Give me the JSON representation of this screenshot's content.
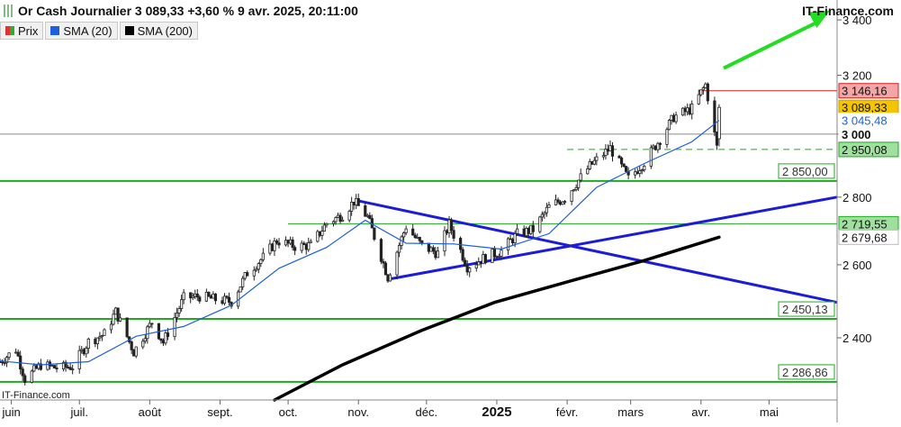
{
  "header": {
    "title": "Or Cash Journalier 3 089,33 +3,60 % 9 avr. 2025, 20:11:00",
    "brand": "IT-Finance.com"
  },
  "legend": {
    "price_label": "Prix",
    "sma20_label": "SMA (20)",
    "sma200_label": "SMA (200)"
  },
  "watermark": "IT-Finance.com",
  "colors": {
    "sma20": "#1e5fe0",
    "sma200": "#000000",
    "support_line": "#1faa1f",
    "resistance_line": "#d42020",
    "trendline": "#1c1cd8",
    "arrow": "#22dd22",
    "last_price_tag": "#f5c400",
    "resistance_tag": "#f4a6a6",
    "support_tag": "#9fe09f"
  },
  "chart_data": {
    "type": "line",
    "title": "Or Cash Journalier 3 089,33 +3,60 % 9 avr. 2025, 20:11:00",
    "xlabel": "",
    "ylabel": "",
    "ylim": [
      2242,
      3475
    ],
    "y_scale": "log",
    "y_ticks": [
      "3 400",
      "3 200",
      "3 000",
      "2 800",
      "2 600",
      "2 400"
    ],
    "y_tick_values": [
      3400,
      3200,
      3000,
      2800,
      2600,
      2400
    ],
    "x_ticks": [
      "juin",
      "juil.",
      "août",
      "sept.",
      "oct.",
      "nov.",
      "déc.",
      "2025",
      "févr.",
      "mars",
      "avr.",
      "mai"
    ],
    "x_tick_dates": [
      "2024-06-01",
      "2024-07-01",
      "2024-08-01",
      "2024-09-01",
      "2024-10-01",
      "2024-11-01",
      "2024-12-01",
      "2025-01-01",
      "2025-02-01",
      "2025-03-01",
      "2025-04-01",
      "2025-05-01"
    ],
    "xlim": [
      "2024-05-27",
      "2025-05-31"
    ],
    "grid": false,
    "legend_position": "top-left",
    "last_price": 3089.33,
    "change_pct": 3.6,
    "series": [
      {
        "name": "Prix",
        "style": "candlestick",
        "points": [
          [
            "2024-05-27",
            2338
          ],
          [
            "2024-06-03",
            2370
          ],
          [
            "2024-06-07",
            2294
          ],
          [
            "2024-06-14",
            2330
          ],
          [
            "2024-06-21",
            2322
          ],
          [
            "2024-06-28",
            2326
          ],
          [
            "2024-07-05",
            2390
          ],
          [
            "2024-07-12",
            2410
          ],
          [
            "2024-07-17",
            2470
          ],
          [
            "2024-07-25",
            2363
          ],
          [
            "2024-08-02",
            2442
          ],
          [
            "2024-08-07",
            2388
          ],
          [
            "2024-08-16",
            2507
          ],
          [
            "2024-08-23",
            2512
          ],
          [
            "2024-08-30",
            2503
          ],
          [
            "2024-09-06",
            2497
          ],
          [
            "2024-09-13",
            2577
          ],
          [
            "2024-09-20",
            2621
          ],
          [
            "2024-09-26",
            2670
          ],
          [
            "2024-10-04",
            2653
          ],
          [
            "2024-10-11",
            2656
          ],
          [
            "2024-10-18",
            2721
          ],
          [
            "2024-10-25",
            2747
          ],
          [
            "2024-10-30",
            2787
          ],
          [
            "2024-11-05",
            2740
          ],
          [
            "2024-11-14",
            2565
          ],
          [
            "2024-11-22",
            2712
          ],
          [
            "2024-11-29",
            2654
          ],
          [
            "2024-12-06",
            2633
          ],
          [
            "2024-12-11",
            2718
          ],
          [
            "2024-12-19",
            2595
          ],
          [
            "2024-12-27",
            2621
          ],
          [
            "2025-01-03",
            2640
          ],
          [
            "2025-01-10",
            2689
          ],
          [
            "2025-01-17",
            2702
          ],
          [
            "2025-01-24",
            2770
          ],
          [
            "2025-01-31",
            2798
          ],
          [
            "2025-02-07",
            2861
          ],
          [
            "2025-02-11",
            2897
          ],
          [
            "2025-02-20",
            2955
          ],
          [
            "2025-02-28",
            2857
          ],
          [
            "2025-03-07",
            2910
          ],
          [
            "2025-03-14",
            2984
          ],
          [
            "2025-03-20",
            3057
          ],
          [
            "2025-03-28",
            3085
          ],
          [
            "2025-04-03",
            3167
          ],
          [
            "2025-04-08",
            2957
          ],
          [
            "2025-04-09",
            3089.33
          ]
        ]
      },
      {
        "name": "SMA (20)",
        "points": [
          [
            "2024-05-27",
            2340
          ],
          [
            "2024-06-14",
            2330
          ],
          [
            "2024-07-05",
            2338
          ],
          [
            "2024-07-26",
            2404
          ],
          [
            "2024-08-16",
            2430
          ],
          [
            "2024-09-06",
            2487
          ],
          [
            "2024-09-27",
            2590
          ],
          [
            "2024-10-18",
            2650
          ],
          [
            "2024-11-04",
            2730
          ],
          [
            "2024-11-22",
            2662
          ],
          [
            "2024-12-13",
            2660
          ],
          [
            "2025-01-03",
            2645
          ],
          [
            "2025-01-24",
            2690
          ],
          [
            "2025-02-14",
            2830
          ],
          [
            "2025-03-07",
            2905
          ],
          [
            "2025-03-28",
            2975
          ],
          [
            "2025-04-09",
            3045.48
          ]
        ]
      },
      {
        "name": "SMA (200)",
        "points": [
          [
            "2024-09-25",
            2242
          ],
          [
            "2024-10-25",
            2330
          ],
          [
            "2024-11-29",
            2420
          ],
          [
            "2024-12-31",
            2495
          ],
          [
            "2025-02-03",
            2555
          ],
          [
            "2025-03-07",
            2612
          ],
          [
            "2025-04-09",
            2679.68
          ]
        ]
      }
    ],
    "levels": [
      {
        "label": "3 146,16",
        "value": 3146.16,
        "kind": "resistance"
      },
      {
        "label": "3 089,33",
        "value": 3089.33,
        "kind": "last"
      },
      {
        "label": "3 045,48",
        "value": 3045.48,
        "kind": "sma20"
      },
      {
        "label": "3 000",
        "value": 3000,
        "kind": "round"
      },
      {
        "label": "2 950,08",
        "value": 2950.08,
        "kind": "support-dashed"
      },
      {
        "label": "2 850,00",
        "value": 2850,
        "kind": "support"
      },
      {
        "label": "2 719,55",
        "value": 2719.55,
        "kind": "support"
      },
      {
        "label": "2 679,68",
        "value": 2679.68,
        "kind": "sma200"
      },
      {
        "label": "2 450,13",
        "value": 2450.13,
        "kind": "support"
      },
      {
        "label": "2 286,86",
        "value": 2286.86,
        "kind": "support"
      }
    ],
    "drawings": {
      "triangle_upper": [
        [
          "2024-10-31",
          2790
        ],
        [
          "2025-05-31",
          2495
        ]
      ],
      "triangle_lower": [
        [
          "2024-11-15",
          2560
        ],
        [
          "2025-05-31",
          2800
        ]
      ],
      "arrow": [
        [
          "2025-04-11",
          3225
        ],
        [
          "2025-05-31",
          3435
        ]
      ]
    }
  }
}
